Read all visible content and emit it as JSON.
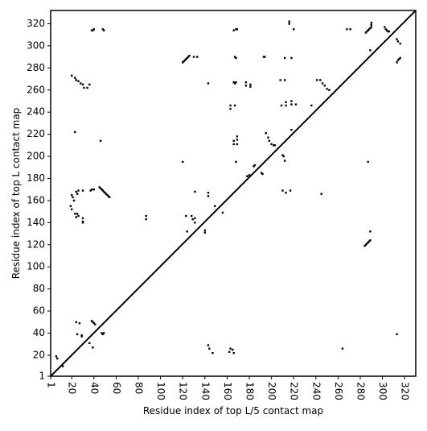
{
  "chart_data": {
    "type": "scatter",
    "xlabel": "Residue index of top L/5 contact map",
    "ylabel": "Residue index of top L contact map",
    "xlim": [
      1,
      330
    ],
    "ylim": [
      1,
      332
    ],
    "xticks": [
      1,
      20,
      40,
      60,
      80,
      100,
      120,
      140,
      160,
      180,
      200,
      220,
      240,
      260,
      280,
      300,
      320
    ],
    "yticks": [
      1,
      20,
      40,
      60,
      80,
      100,
      120,
      140,
      160,
      180,
      200,
      220,
      240,
      260,
      280,
      300,
      320
    ],
    "color": "#000000",
    "x": [
      38,
      39,
      40,
      48,
      49,
      166,
      168,
      169,
      216,
      216,
      220,
      268,
      271,
      285,
      286,
      287,
      288,
      289,
      290,
      290,
      290,
      302,
      303,
      304,
      305,
      306,
      313,
      314,
      316,
      167,
      168,
      193,
      194,
      212,
      218,
      289,
      314,
      315,
      316,
      313,
      120,
      121,
      122,
      123,
      124,
      125,
      126,
      130,
      133,
      20,
      23,
      24,
      26,
      28,
      30,
      31,
      34,
      36,
      143,
      166,
      167,
      168,
      177,
      177,
      181,
      181,
      208,
      212,
      241,
      244,
      246,
      248,
      250,
      252,
      163,
      163,
      167,
      209,
      213,
      213,
      218,
      218,
      222,
      236,
      195,
      197,
      198,
      200,
      202,
      203,
      166,
      166,
      169,
      169,
      169,
      120,
      168,
      212,
      178,
      180,
      184,
      185,
      191,
      192,
      210,
      211,
      46,
      23,
      218,
      210,
      213,
      217,
      20,
      21,
      22,
      24,
      25,
      26,
      30,
      37,
      38,
      40,
      45,
      46,
      47,
      48,
      49,
      50,
      51,
      52,
      53,
      54,
      19,
      20,
      23,
      25,
      26,
      24,
      30,
      30,
      30,
      87,
      87,
      143,
      143,
      149,
      156,
      123,
      128,
      129,
      131,
      131,
      131,
      140,
      140,
      124,
      245,
      284,
      285,
      286,
      287,
      288,
      289,
      289,
      287,
      24,
      27,
      38,
      39,
      40,
      41,
      47,
      48,
      49,
      25,
      29,
      29,
      36,
      39,
      6,
      7,
      12,
      143,
      144,
      147,
      162,
      163,
      165,
      166,
      264,
      313
    ],
    "y": [
      314,
      314,
      315,
      315,
      314,
      314,
      315,
      315,
      322,
      320,
      315,
      315,
      315,
      312,
      313,
      314,
      315,
      316,
      317,
      319,
      321,
      317,
      315,
      314,
      313,
      313,
      306,
      304,
      302,
      290,
      289,
      290,
      290,
      289,
      289,
      296,
      287,
      288,
      289,
      285,
      285,
      286,
      287,
      288,
      289,
      290,
      291,
      290,
      290,
      273,
      271,
      269,
      268,
      266,
      265,
      262,
      262,
      265,
      266,
      267,
      266,
      267,
      267,
      264,
      265,
      263,
      269,
      269,
      269,
      269,
      266,
      264,
      261,
      260,
      246,
      243,
      246,
      246,
      246,
      249,
      250,
      247,
      247,
      246,
      221,
      217,
      214,
      211,
      210,
      210,
      214,
      211,
      218,
      215,
      211,
      195,
      195,
      196,
      182,
      183,
      191,
      192,
      185,
      184,
      201,
      200,
      214,
      222,
      224,
      169,
      167,
      169,
      165,
      163,
      160,
      168,
      166,
      169,
      169,
      169,
      170,
      170,
      172,
      171,
      170,
      169,
      168,
      167,
      166,
      165,
      164,
      163,
      155,
      152,
      148,
      148,
      146,
      145,
      144,
      141,
      140,
      146,
      143,
      167,
      164,
      155,
      149,
      146,
      146,
      143,
      140,
      144,
      168,
      133,
      131,
      132,
      166,
      119,
      120,
      121,
      122,
      123,
      124,
      132,
      195,
      50,
      49,
      51,
      50,
      49,
      48,
      40,
      39,
      40,
      39,
      38,
      37,
      31,
      27,
      19,
      17,
      10,
      29,
      26,
      22,
      23,
      26,
      25,
      22,
      26,
      39
    ]
  }
}
